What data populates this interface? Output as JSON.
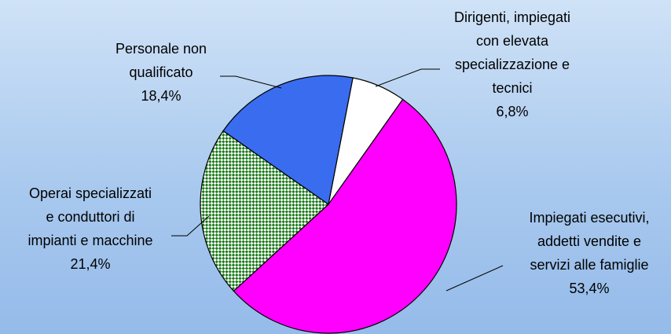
{
  "chart_data": {
    "type": "pie",
    "title": "",
    "slices": [
      {
        "label": [
          "Dirigenti, impiegati",
          "con elevata",
          "specializzazione e",
          "tecnici"
        ],
        "value": 6.8,
        "value_text": "6,8%",
        "color": "#ffffff",
        "pattern": "solid"
      },
      {
        "label": [
          "Impiegati esecutivi,",
          "addetti vendite e",
          "servizi alle famiglie"
        ],
        "value": 53.4,
        "value_text": "53,4%",
        "color": "#ff00ff",
        "pattern": "solid"
      },
      {
        "label": [
          "Operai specializzati",
          "e conduttori di",
          "impianti e macchine"
        ],
        "value": 21.4,
        "value_text": "21,4%",
        "color": "#1a7a1a",
        "pattern": "checker"
      },
      {
        "label": [
          "Personale non",
          "qualificato"
        ],
        "value": 18.4,
        "value_text": "18,4%",
        "color": "#3a6cf0",
        "pattern": "solid"
      }
    ]
  }
}
